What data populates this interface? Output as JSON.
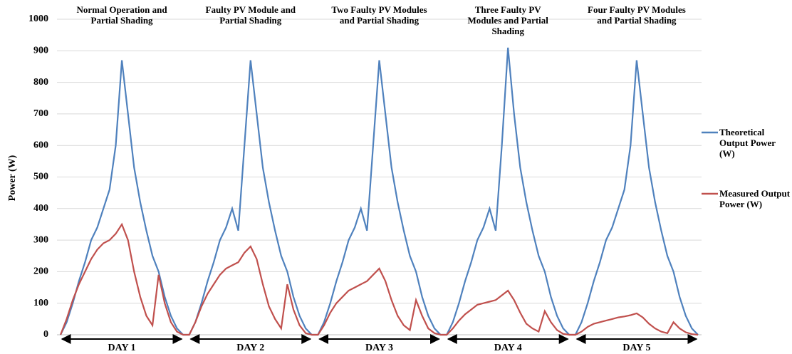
{
  "chart_data": {
    "type": "line",
    "y_label": "Power (W)",
    "day_titles": [
      "Normal Operation and Partial Shading",
      "Faulty PV Module and Partial Shading",
      "Two Faulty PV Modules and Partial Shading",
      "Three Faulty PV Modules and Partial Shading",
      "Four Faulty PV Modules and Partial Shading"
    ],
    "day_labels": [
      "DAY 1",
      "DAY 2",
      "DAY 3",
      "DAY 4",
      "DAY 5"
    ],
    "categories": [
      null,
      null,
      null,
      null,
      null,
      null,
      null,
      null,
      null,
      null,
      null,
      null,
      null,
      null,
      null,
      null,
      null,
      null,
      null,
      null,
      null,
      null,
      null,
      null,
      null,
      null,
      null,
      null,
      null,
      null,
      null,
      null,
      null,
      null,
      null,
      null,
      null,
      null,
      null,
      null,
      null,
      null,
      null,
      null,
      null,
      null,
      null,
      null,
      null,
      null,
      null,
      null,
      null,
      null,
      null,
      null,
      null,
      null,
      null,
      null,
      null,
      null,
      null,
      null,
      null,
      null,
      null,
      null,
      null,
      null,
      null,
      null,
      null,
      null,
      null,
      null,
      null,
      null,
      null,
      null,
      null,
      null,
      null,
      null,
      null,
      null,
      null,
      null,
      null,
      null,
      null,
      null,
      null,
      null,
      null,
      null,
      null,
      null,
      null,
      null,
      null,
      null,
      null,
      null,
      null
    ],
    "series": [
      {
        "name": "Theoretical Output Power (W)",
        "color": "#4f81bd",
        "values": [
          0,
          40,
          100,
          170,
          230,
          300,
          340,
          400,
          460,
          600,
          870,
          700,
          530,
          420,
          330,
          250,
          200,
          120,
          60,
          20,
          0,
          0,
          40,
          100,
          170,
          230,
          300,
          340,
          400,
          330,
          600,
          870,
          700,
          530,
          420,
          330,
          250,
          200,
          120,
          60,
          20,
          0,
          0,
          40,
          100,
          170,
          230,
          300,
          340,
          400,
          330,
          600,
          870,
          700,
          530,
          420,
          330,
          250,
          200,
          120,
          60,
          20,
          0,
          0,
          40,
          100,
          170,
          230,
          300,
          340,
          400,
          330,
          600,
          910,
          700,
          530,
          420,
          330,
          250,
          200,
          120,
          60,
          20,
          0,
          0,
          40,
          100,
          170,
          230,
          300,
          340,
          400,
          460,
          600,
          870,
          700,
          530,
          420,
          330,
          250,
          200,
          120,
          60,
          20,
          0
        ]
      },
      {
        "name": "Measured Output Power (W)",
        "color": "#c0504d",
        "values": [
          0,
          50,
          110,
          160,
          200,
          240,
          270,
          290,
          300,
          320,
          350,
          300,
          200,
          120,
          60,
          30,
          190,
          100,
          40,
          10,
          0,
          0,
          40,
          90,
          130,
          160,
          190,
          210,
          220,
          230,
          260,
          280,
          240,
          160,
          90,
          50,
          20,
          160,
          80,
          30,
          5,
          0,
          0,
          30,
          70,
          100,
          120,
          140,
          150,
          160,
          170,
          190,
          210,
          170,
          110,
          60,
          30,
          15,
          110,
          60,
          20,
          5,
          0,
          0,
          20,
          45,
          65,
          80,
          95,
          100,
          105,
          110,
          125,
          140,
          110,
          70,
          35,
          20,
          10,
          75,
          40,
          15,
          3,
          0,
          0,
          10,
          25,
          35,
          40,
          45,
          50,
          55,
          58,
          62,
          68,
          55,
          35,
          20,
          10,
          5,
          40,
          20,
          8,
          2,
          0
        ]
      }
    ],
    "ylim": [
      0,
      1000
    ],
    "yticks": [
      0,
      100,
      200,
      300,
      400,
      500,
      600,
      700,
      800,
      900,
      1000
    ],
    "grid": true
  }
}
